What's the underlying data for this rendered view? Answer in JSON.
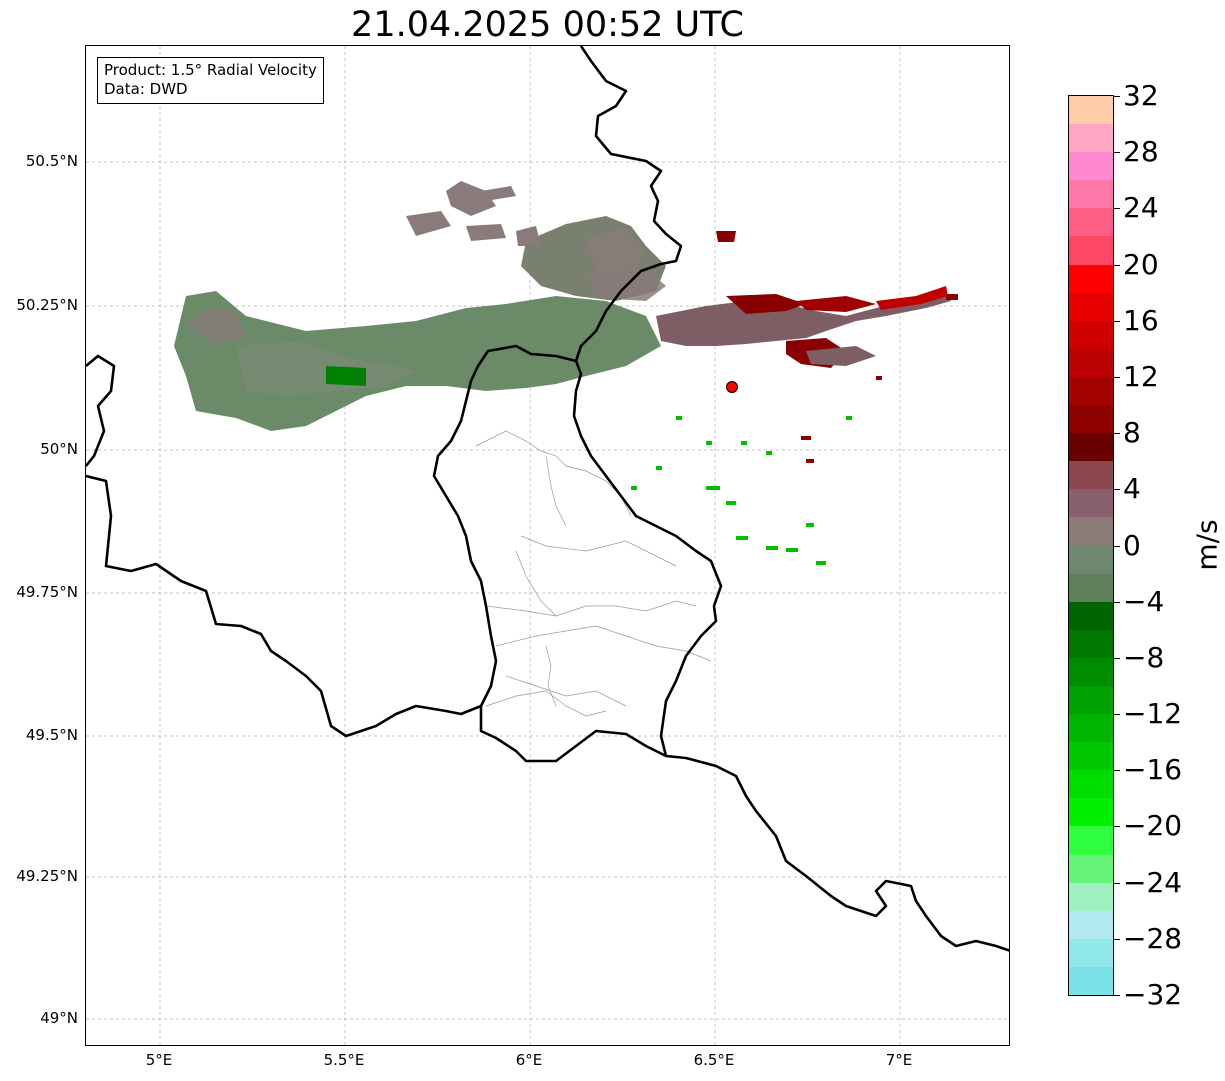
{
  "title": "21.04.2025 00:52 UTC",
  "info": {
    "product_line": "Product: 1.5° Radial Velocity",
    "data_line": "Data: DWD"
  },
  "map": {
    "extent": {
      "lon_min": 4.8,
      "lon_max": 7.3,
      "lat_min": 48.95,
      "lat_max": 50.7
    },
    "lat_ticks": [
      {
        "value": 50.5,
        "label": "50.5°N"
      },
      {
        "value": 50.25,
        "label": "50.25°N"
      },
      {
        "value": 50.0,
        "label": "50°N"
      },
      {
        "value": 49.75,
        "label": "49.75°N"
      },
      {
        "value": 49.5,
        "label": "49.5°N"
      },
      {
        "value": 49.25,
        "label": "49.25°N"
      },
      {
        "value": 49.0,
        "label": "49°N"
      }
    ],
    "lon_ticks": [
      {
        "value": 5.0,
        "label": "5°E"
      },
      {
        "value": 5.5,
        "label": "5.5°E"
      },
      {
        "value": 6.0,
        "label": "6°E"
      },
      {
        "value": 6.5,
        "label": "6.5°E"
      },
      {
        "value": 7.0,
        "label": "7°E"
      }
    ],
    "radar_site": {
      "lon": 6.55,
      "lat": 50.11,
      "color": "#ff0000"
    },
    "colors": {
      "border": "#000000",
      "admin": "#9a9a9a",
      "grid": "#b0b0b0"
    }
  },
  "colorbar": {
    "unit": "m/s",
    "min": -32,
    "max": 32,
    "tick_labels": [
      "32",
      "28",
      "24",
      "20",
      "16",
      "12",
      "8",
      "4",
      "0",
      "−4",
      "−8",
      "−12",
      "−16",
      "−20",
      "−24",
      "−28",
      "−32"
    ],
    "colors_top_to_bottom": [
      "#ffccaa",
      "#ffa6c3",
      "#ff88d0",
      "#ff77a8",
      "#ff5f86",
      "#ff4766",
      "#ff0000",
      "#e60000",
      "#d00000",
      "#ba0000",
      "#a30000",
      "#8c0000",
      "#6b0000",
      "#8a4750",
      "#896070",
      "#8a7a78",
      "#6e8870",
      "#5e8058",
      "#006400",
      "#007800",
      "#008c00",
      "#00a000",
      "#00b400",
      "#00c800",
      "#00de00",
      "#00f000",
      "#30ff40",
      "#66f57a",
      "#9ff0c0",
      "#b0eaf0",
      "#90e8ea",
      "#78e2e6"
    ]
  }
}
